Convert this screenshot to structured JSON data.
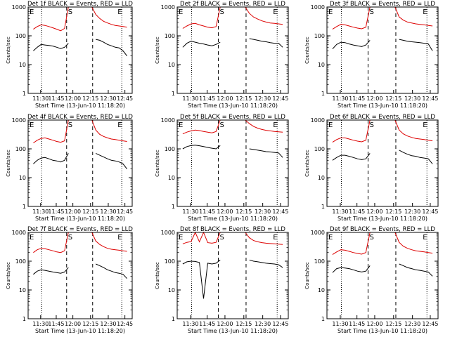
{
  "chart_data": [
    {
      "type": "line",
      "title": "Det 1f BLACK = Events, RED = LLD",
      "xlabel": "Start Time (13-Jun-10 11:18:20)",
      "ylabel": "Counts/sec",
      "yscale": "log",
      "ylim": [
        1,
        1000
      ],
      "x_ticks": [
        "11:30",
        "11:45",
        "12:00",
        "12:15",
        "12:30",
        "12:45"
      ],
      "y_ticks": [
        "1",
        "10",
        "100",
        "1000"
      ],
      "markers": [
        "E",
        "S",
        "E"
      ],
      "series": [
        {
          "name": "BLACK = Events",
          "color": "#000000",
          "values": [
            30,
            40,
            50,
            48,
            46,
            44,
            40,
            36,
            40,
            55,
            null,
            null,
            null,
            null,
            null,
            null,
            75,
            70,
            60,
            50,
            45,
            40,
            38,
            30,
            20
          ]
        },
        {
          "name": "RED = LLD",
          "color": "#dd0000",
          "values": [
            170,
            210,
            240,
            230,
            210,
            190,
            170,
            150,
            180,
            1000,
            null,
            null,
            null,
            null,
            null,
            1000,
            550,
            400,
            320,
            280,
            250,
            230,
            220,
            210,
            200
          ]
        }
      ]
    },
    {
      "type": "line",
      "title": "Det 2f BLACK = Events, RED = LLD",
      "xlabel": "Start Time (13-Jun-10 11:18:20)",
      "ylabel": "Counts/sec",
      "yscale": "log",
      "ylim": [
        1,
        1000
      ],
      "x_ticks": [
        "11:30",
        "11:45",
        "12:00",
        "12:15",
        "12:30",
        "12:45"
      ],
      "y_ticks": [
        "1",
        "10",
        "100",
        "1000"
      ],
      "markers": [
        "E",
        "S",
        "E"
      ],
      "series": [
        {
          "name": "BLACK = Events",
          "color": "#000000",
          "values": [
            40,
            55,
            65,
            60,
            55,
            52,
            48,
            45,
            50,
            60,
            null,
            null,
            null,
            null,
            null,
            null,
            80,
            75,
            70,
            65,
            62,
            58,
            55,
            55,
            40
          ]
        },
        {
          "name": "RED = LLD",
          "color": "#dd0000",
          "values": [
            180,
            220,
            260,
            270,
            240,
            220,
            200,
            190,
            210,
            1000,
            null,
            null,
            null,
            null,
            null,
            1000,
            600,
            450,
            380,
            330,
            300,
            280,
            270,
            260,
            250
          ]
        }
      ]
    },
    {
      "type": "line",
      "title": "Det 3f BLACK = Events, RED = LLD",
      "xlabel": "Start Time (13-Jun-10 11:18:20)",
      "ylabel": "Counts/sec",
      "yscale": "log",
      "ylim": [
        1,
        1000
      ],
      "x_ticks": [
        "11:30",
        "11:45",
        "12:00",
        "12:15",
        "12:30",
        "12:45"
      ],
      "y_ticks": [
        "1",
        "10",
        "100",
        "1000"
      ],
      "markers": [
        "E",
        "S",
        "E"
      ],
      "series": [
        {
          "name": "BLACK = Events",
          "color": "#000000",
          "values": [
            35,
            50,
            60,
            58,
            52,
            48,
            45,
            42,
            48,
            70,
            null,
            null,
            null,
            null,
            null,
            null,
            75,
            70,
            65,
            62,
            60,
            58,
            55,
            52,
            30
          ]
        },
        {
          "name": "RED = LLD",
          "color": "#dd0000",
          "values": [
            170,
            210,
            250,
            240,
            220,
            200,
            185,
            175,
            200,
            1000,
            null,
            null,
            null,
            null,
            null,
            1000,
            450,
            350,
            300,
            280,
            260,
            250,
            240,
            230,
            220
          ]
        }
      ]
    },
    {
      "type": "line",
      "title": "Det 4f BLACK = Events, RED = LLD",
      "xlabel": "Start Time (13-Jun-10 11:18:20)",
      "ylabel": "Counts/sec",
      "yscale": "log",
      "ylim": [
        1,
        1000
      ],
      "x_ticks": [
        "11:30",
        "11:45",
        "12:00",
        "12:15",
        "12:30",
        "12:45"
      ],
      "y_ticks": [
        "1",
        "10",
        "100",
        "1000"
      ],
      "markers": [
        "E",
        "S",
        "E"
      ],
      "series": [
        {
          "name": "BLACK = Events",
          "color": "#000000",
          "values": [
            30,
            40,
            48,
            50,
            45,
            40,
            38,
            35,
            40,
            70,
            null,
            null,
            null,
            null,
            null,
            null,
            70,
            60,
            52,
            45,
            40,
            38,
            35,
            30,
            20
          ]
        },
        {
          "name": "RED = LLD",
          "color": "#dd0000",
          "values": [
            160,
            200,
            230,
            240,
            220,
            200,
            180,
            170,
            190,
            1000,
            null,
            null,
            null,
            null,
            null,
            1000,
            450,
            320,
            270,
            240,
            220,
            210,
            200,
            190,
            180
          ]
        }
      ]
    },
    {
      "type": "line",
      "title": "Det 5f BLACK = Events, RED = LLD",
      "xlabel": "Start Time (13-Jun-10 11:18:20)",
      "ylabel": "Counts/sec",
      "yscale": "log",
      "ylim": [
        1,
        1000
      ],
      "x_ticks": [
        "11:30",
        "11:45",
        "12:00",
        "12:15",
        "12:30",
        "12:45"
      ],
      "y_ticks": [
        "1",
        "10",
        "100",
        "1000"
      ],
      "markers": [
        "E",
        "S",
        "E"
      ],
      "series": [
        {
          "name": "BLACK = Events",
          "color": "#000000",
          "values": [
            100,
            120,
            130,
            135,
            128,
            120,
            112,
            105,
            100,
            130,
            null,
            null,
            null,
            null,
            null,
            null,
            100,
            95,
            90,
            85,
            80,
            78,
            75,
            72,
            50
          ]
        },
        {
          "name": "RED = LLD",
          "color": "#dd0000",
          "values": [
            330,
            380,
            420,
            450,
            430,
            400,
            380,
            360,
            400,
            1000,
            null,
            null,
            null,
            null,
            null,
            1000,
            750,
            600,
            520,
            470,
            440,
            420,
            400,
            390,
            380
          ]
        }
      ]
    },
    {
      "type": "line",
      "title": "Det 6f BLACK = Events, RED = LLD",
      "xlabel": "Start Time (13-Jun-10 11:18:20)",
      "ylabel": "Counts/sec",
      "yscale": "log",
      "ylim": [
        1,
        1000
      ],
      "x_ticks": [
        "11:30",
        "11:45",
        "12:00",
        "12:15",
        "12:30",
        "12:45"
      ],
      "y_ticks": [
        "1",
        "10",
        "100",
        "1000"
      ],
      "markers": [
        "E",
        "S",
        "E"
      ],
      "series": [
        {
          "name": "BLACK = Events",
          "color": "#000000",
          "values": [
            40,
            50,
            60,
            60,
            55,
            50,
            45,
            42,
            45,
            70,
            null,
            null,
            null,
            null,
            null,
            null,
            90,
            75,
            65,
            58,
            55,
            50,
            48,
            45,
            30
          ]
        },
        {
          "name": "RED = LLD",
          "color": "#dd0000",
          "values": [
            170,
            210,
            240,
            240,
            220,
            200,
            185,
            175,
            200,
            1000,
            null,
            null,
            null,
            null,
            null,
            1000,
            450,
            330,
            280,
            250,
            230,
            220,
            210,
            200,
            190
          ]
        }
      ]
    },
    {
      "type": "line",
      "title": "Det 7f BLACK = Events, RED = LLD",
      "xlabel": "Start Time (13-Jun-10 11:18:20)",
      "ylabel": "Counts/sec",
      "yscale": "log",
      "ylim": [
        1,
        1000
      ],
      "x_ticks": [
        "11:30",
        "11:45",
        "12:00",
        "12:15",
        "12:30",
        "12:45"
      ],
      "y_ticks": [
        "1",
        "10",
        "100",
        "1000"
      ],
      "markers": [
        "E",
        "S",
        "E"
      ],
      "series": [
        {
          "name": "BLACK = Events",
          "color": "#000000",
          "values": [
            35,
            45,
            50,
            48,
            45,
            42,
            40,
            38,
            42,
            60,
            null,
            null,
            null,
            null,
            null,
            null,
            80,
            70,
            60,
            50,
            45,
            40,
            38,
            35,
            25
          ]
        },
        {
          "name": "RED = LLD",
          "color": "#dd0000",
          "values": [
            200,
            250,
            280,
            270,
            250,
            230,
            210,
            200,
            230,
            1000,
            null,
            null,
            null,
            null,
            null,
            1000,
            500,
            380,
            320,
            280,
            260,
            250,
            240,
            230,
            220
          ]
        }
      ]
    },
    {
      "type": "line",
      "title": "Det 8f BLACK = Events, RED = LLD",
      "xlabel": "Start Time (13-Jun-10 11:18:20)",
      "ylabel": "Counts/sec",
      "yscale": "log",
      "ylim": [
        1,
        1000
      ],
      "x_ticks": [
        "11:30",
        "11:45",
        "12:00",
        "12:15",
        "12:30",
        "12:45"
      ],
      "y_ticks": [
        "1",
        "10",
        "100",
        "1000"
      ],
      "markers": [
        "E",
        "S",
        "E"
      ],
      "series": [
        {
          "name": "BLACK = Events",
          "color": "#000000",
          "values": [
            80,
            95,
            100,
            98,
            90,
            5,
            85,
            80,
            85,
            110,
            null,
            null,
            null,
            null,
            null,
            null,
            110,
            100,
            95,
            90,
            85,
            82,
            80,
            75,
            60
          ]
        },
        {
          "name": "RED = LLD",
          "color": "#dd0000",
          "values": [
            400,
            450,
            480,
            1000,
            470,
            1000,
            440,
            420,
            450,
            1000,
            null,
            null,
            null,
            null,
            null,
            1000,
            650,
            520,
            470,
            440,
            420,
            410,
            400,
            390,
            380
          ]
        }
      ]
    },
    {
      "type": "line",
      "title": "Det 9f BLACK = Events, RED = LLD",
      "xlabel": "Start Time (13-Jun-10 11:18:20)",
      "ylabel": "Counts/sec",
      "yscale": "log",
      "ylim": [
        1,
        1000
      ],
      "x_ticks": [
        "11:30",
        "11:45",
        "12:00",
        "12:15",
        "12:30",
        "12:45"
      ],
      "y_ticks": [
        "1",
        "10",
        "100",
        "1000"
      ],
      "markers": [
        "E",
        "S",
        "E"
      ],
      "series": [
        {
          "name": "BLACK = Events",
          "color": "#000000",
          "values": [
            40,
            55,
            60,
            58,
            55,
            50,
            45,
            42,
            45,
            70,
            null,
            null,
            null,
            null,
            null,
            null,
            80,
            70,
            60,
            55,
            50,
            48,
            45,
            42,
            30
          ]
        },
        {
          "name": "RED = LLD",
          "color": "#dd0000",
          "values": [
            170,
            210,
            250,
            240,
            220,
            200,
            185,
            175,
            200,
            1000,
            null,
            null,
            null,
            null,
            null,
            1000,
            450,
            330,
            280,
            250,
            230,
            220,
            210,
            200,
            190
          ]
        }
      ]
    }
  ]
}
